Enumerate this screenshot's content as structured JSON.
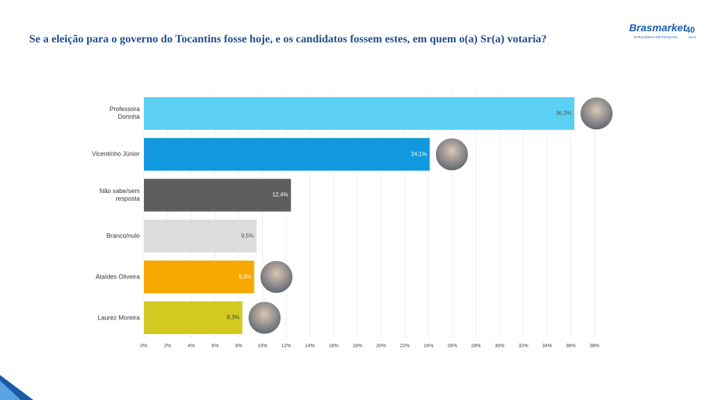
{
  "logo": {
    "name": "Brasmarket",
    "years": "40",
    "years_label": "ANOS",
    "tagline": "INTELIGÊNCIA EM PESQUISA"
  },
  "chart_data": {
    "type": "bar",
    "orientation": "horizontal",
    "title": "Se a eleição para o governo do Tocantins fosse hoje, e os candidatos fossem estes, em quem o(a) Sr(a) votaria?",
    "categories": [
      "Professora\nDorinha",
      "Vicentinho Júnior",
      "Não sabe/sem\nresposta",
      "Branco/nulo",
      "Ataídes Oliveira",
      "Laurez Moreira"
    ],
    "values": [
      36.3,
      24.1,
      12.4,
      9.5,
      9.3,
      8.3
    ],
    "value_labels": [
      "36,3%",
      "24,1%",
      "12,4%",
      "9,5%",
      "9,3%",
      "8,3%"
    ],
    "colors": [
      "#5bd0f2",
      "#1199e0",
      "#5e5e5e",
      "#dcdcdc",
      "#f6a800",
      "#d3c920"
    ],
    "xlim": [
      0,
      38
    ],
    "xticks": [
      {
        "value": 0,
        "label": "0%"
      },
      {
        "value": 2,
        "label": "2%"
      },
      {
        "value": 4,
        "label": "4%"
      },
      {
        "value": 6,
        "label": "6%"
      },
      {
        "value": 8,
        "label": "8%"
      },
      {
        "value": 10,
        "label": "10%"
      },
      {
        "value": 12,
        "label": "12%"
      },
      {
        "value": 14,
        "label": "14%"
      },
      {
        "value": 16,
        "label": "16%"
      },
      {
        "value": 18,
        "label": "18%"
      },
      {
        "value": 20,
        "label": "20%"
      },
      {
        "value": 22,
        "label": "22%"
      },
      {
        "value": 24,
        "label": "24%"
      },
      {
        "value": 26,
        "label": "26%"
      },
      {
        "value": 28,
        "label": "28%"
      },
      {
        "value": 30,
        "label": "30%"
      },
      {
        "value": 32,
        "label": "32%"
      },
      {
        "value": 34,
        "label": "34%"
      },
      {
        "value": 36,
        "label": "36%"
      },
      {
        "value": 38,
        "label": "38%"
      }
    ],
    "grid": true
  }
}
